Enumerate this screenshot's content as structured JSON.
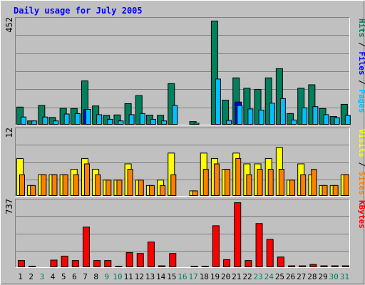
{
  "chart_data": [
    {
      "type": "bar",
      "title": "Daily usage for July 2005",
      "categories": [
        "1",
        "2",
        "3",
        "4",
        "5",
        "6",
        "7",
        "8",
        "9",
        "10",
        "11",
        "12",
        "13",
        "14",
        "15",
        "16",
        "17",
        "18",
        "19",
        "20",
        "21",
        "22",
        "23",
        "24",
        "25",
        "26",
        "27",
        "28",
        "29",
        "30",
        "31"
      ],
      "weekend_days": [
        "3",
        "9",
        "10",
        "16",
        "17",
        "23",
        "24",
        "30",
        "31"
      ],
      "ylabel": [
        "Pages",
        "Files",
        "Hits"
      ],
      "ytick_max": "452",
      "ylim": [
        0,
        452
      ],
      "grid": true,
      "series": [
        {
          "name": "Hits",
          "color": "#00805c",
          "values": [
            78,
            18,
            85,
            33,
            73,
            72,
            192,
            83,
            42,
            44,
            93,
            128,
            43,
            42,
            180,
            0,
            15,
            0,
            452,
            108,
            205,
            160,
            155,
            205,
            245,
            50,
            160,
            175,
            72,
            37,
            90
          ]
        },
        {
          "name": "Files",
          "color": "#0000ff",
          "values": [
            0,
            0,
            0,
            0,
            0,
            0,
            68,
            0,
            0,
            0,
            0,
            0,
            0,
            0,
            0,
            0,
            0,
            0,
            0,
            0,
            100,
            0,
            0,
            0,
            0,
            0,
            0,
            0,
            0,
            0,
            0
          ]
        },
        {
          "name": "Pages",
          "color": "#00c0ff",
          "values": [
            35,
            18,
            35,
            18,
            48,
            50,
            68,
            45,
            25,
            18,
            45,
            50,
            25,
            18,
            85,
            0,
            8,
            0,
            200,
            20,
            85,
            70,
            65,
            95,
            115,
            22,
            75,
            80,
            45,
            32,
            42
          ]
        }
      ]
    },
    {
      "type": "bar",
      "categories": [
        "1",
        "2",
        "3",
        "4",
        "5",
        "6",
        "7",
        "8",
        "9",
        "10",
        "11",
        "12",
        "13",
        "14",
        "15",
        "16",
        "17",
        "18",
        "19",
        "20",
        "21",
        "22",
        "23",
        "24",
        "25",
        "26",
        "27",
        "28",
        "29",
        "30",
        "31"
      ],
      "ylabel": [
        "Sites",
        "Visits"
      ],
      "ytick_max": "12",
      "ylim": [
        0,
        12
      ],
      "grid": true,
      "series": [
        {
          "name": "Visits",
          "color": "#ffff00",
          "values": [
            7,
            2,
            4,
            4,
            4,
            5,
            7,
            5,
            3,
            3,
            6,
            3,
            2,
            3,
            8,
            0,
            1,
            8,
            7,
            5,
            8,
            6,
            6,
            7,
            9,
            3,
            6,
            4,
            2,
            2,
            4
          ]
        },
        {
          "name": "Sites",
          "color": "#ff8000",
          "values": [
            4,
            2,
            4,
            4,
            4,
            4,
            6,
            4,
            3,
            3,
            5,
            3,
            2,
            2,
            4,
            0,
            1,
            5,
            6,
            5,
            7,
            4,
            5,
            5,
            5,
            3,
            4,
            5,
            2,
            2,
            4
          ]
        }
      ]
    },
    {
      "type": "bar",
      "categories": [
        "1",
        "2",
        "3",
        "4",
        "5",
        "6",
        "7",
        "8",
        "9",
        "10",
        "11",
        "12",
        "13",
        "14",
        "15",
        "16",
        "17",
        "18",
        "19",
        "20",
        "21",
        "22",
        "23",
        "24",
        "25",
        "26",
        "27",
        "28",
        "29",
        "30",
        "31"
      ],
      "ylabel": [
        "KBytes"
      ],
      "ytick_max": "737",
      "ylim": [
        0,
        737
      ],
      "grid": true,
      "series": [
        {
          "name": "KBytes",
          "color": "#ff0000",
          "values": [
            80,
            15,
            0,
            85,
            130,
            80,
            460,
            80,
            80,
            15,
            170,
            160,
            290,
            20,
            160,
            0,
            15,
            15,
            475,
            90,
            737,
            80,
            500,
            320,
            120,
            20,
            20,
            35,
            20,
            20,
            20
          ]
        }
      ]
    }
  ]
}
